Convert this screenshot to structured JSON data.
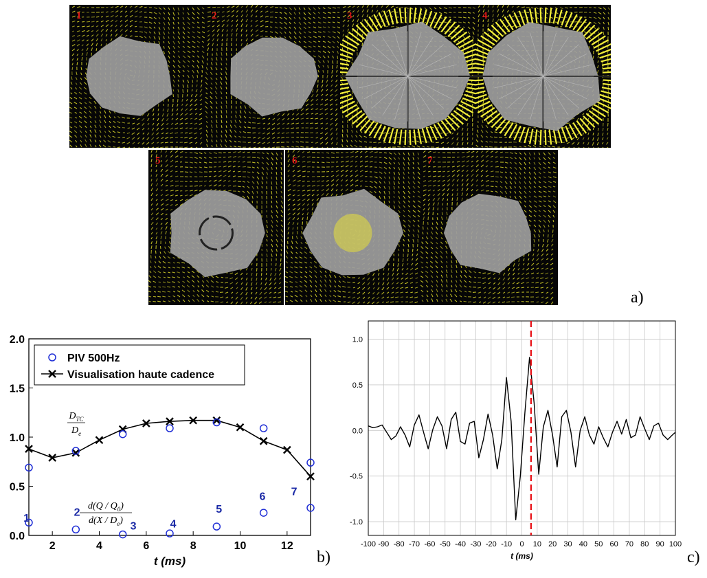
{
  "figure": {
    "panel_labels": [
      "a)",
      "b)",
      "c)"
    ]
  },
  "piv_frames": [
    {
      "label": "1",
      "blob": "small",
      "ring": false,
      "lobe": true
    },
    {
      "label": "2",
      "blob": "small",
      "ring": false,
      "lobe": false
    },
    {
      "label": "3",
      "blob": "large",
      "ring": true,
      "lobe": false
    },
    {
      "label": "4",
      "blob": "large",
      "ring": true,
      "lobe": false
    },
    {
      "label": "5",
      "blob": "medium",
      "ring": false,
      "lobe": false,
      "dark_circle": true
    },
    {
      "label": "6",
      "blob": "medium",
      "ring": false,
      "lobe": false,
      "yellow_core": true
    },
    {
      "label": "7",
      "blob": "small",
      "ring": false,
      "lobe": false
    }
  ],
  "colors": {
    "vector_yellow": "#d6d22a",
    "blob_gray": "#9d9d9d",
    "frame_number": "#e01818",
    "piv_marker": "#1f2ed6",
    "label_blue": "#1b2aa6",
    "dashed_red": "#e8141a"
  },
  "chart_data": [
    {
      "type": "scatter",
      "panel": "b)",
      "xlabel": "t (ms)",
      "ylabel": "",
      "xlim": [
        1,
        13
      ],
      "ylim": [
        0,
        2.0
      ],
      "xticks": [
        2,
        4,
        6,
        8,
        10,
        12
      ],
      "yticks": [
        0.0,
        0.5,
        1.0,
        1.5,
        2.0
      ],
      "ytick_labels": [
        "0.0",
        "0.5",
        "1.0",
        "1.5",
        "2.0"
      ],
      "legend_position": "top-left",
      "series": [
        {
          "name": "PIV 500Hz",
          "marker": "open-circle",
          "x": [
            1,
            3,
            5,
            7,
            9,
            11,
            13
          ],
          "y": [
            0.69,
            0.86,
            1.03,
            1.09,
            1.15,
            1.09,
            0.74
          ]
        },
        {
          "name": "PIV 500Hz",
          "marker": "open-circle",
          "x": [
            1,
            3,
            5,
            7,
            9,
            11,
            13
          ],
          "y": [
            0.13,
            0.06,
            0.01,
            0.02,
            0.09,
            0.23,
            0.28
          ]
        },
        {
          "name": "Visualisation haute cadence",
          "marker": "x-line",
          "x": [
            1,
            2,
            3,
            4,
            5,
            6,
            7,
            8,
            9,
            10,
            11,
            12,
            13
          ],
          "y": [
            0.88,
            0.79,
            0.84,
            0.97,
            1.08,
            1.14,
            1.16,
            1.17,
            1.17,
            1.1,
            0.96,
            0.87,
            0.6
          ]
        }
      ],
      "annotations": [
        {
          "text": "1",
          "x": 0.9,
          "y": 0.14
        },
        {
          "text": "2",
          "x": 3.05,
          "y": 0.2
        },
        {
          "text": "3",
          "x": 5.45,
          "y": 0.06
        },
        {
          "text": "4",
          "x": 7.15,
          "y": 0.08
        },
        {
          "text": "5",
          "x": 9.1,
          "y": 0.23
        },
        {
          "text": "6",
          "x": 10.95,
          "y": 0.36
        },
        {
          "text": "7",
          "x": 12.3,
          "y": 0.41
        }
      ],
      "formula_upper": {
        "num": "D",
        "num_sub": "TC",
        "den": "D",
        "den_sub": "e"
      },
      "formula_lower": {
        "num": "d(Q / Q",
        "num_sub": "0",
        "num_tail": ")",
        "den": "d(X / D",
        "den_sub": "e",
        "den_tail": ")"
      }
    },
    {
      "type": "line",
      "panel": "c)",
      "xlabel": "t (ms)",
      "ylabel": "",
      "xlim": [
        -100,
        100
      ],
      "ylim": [
        -1.15,
        1.2
      ],
      "grid": true,
      "xticks": [
        -100,
        -90,
        -80,
        -70,
        -60,
        -50,
        -40,
        -30,
        -20,
        -10,
        0,
        10,
        20,
        30,
        40,
        50,
        60,
        70,
        80,
        90,
        100
      ],
      "yticks": [
        -1.0,
        -0.5,
        0.0,
        0.5,
        1.0
      ],
      "ytick_labels": [
        "-1.0",
        "-0.5",
        "0.0",
        "0.5",
        "1.0"
      ],
      "vline": {
        "x": 6,
        "style": "dashed"
      },
      "series": [
        {
          "x": [
            -100,
            -97,
            -94,
            -91,
            -88,
            -85,
            -82,
            -79,
            -76,
            -73,
            -70,
            -67,
            -64,
            -61,
            -58,
            -55,
            -52,
            -49,
            -46,
            -43,
            -40,
            -37,
            -34,
            -31,
            -28,
            -25,
            -22,
            -19,
            -16,
            -13,
            -10,
            -7,
            -4,
            -1,
            2,
            5,
            8,
            11,
            14,
            17,
            20,
            23,
            26,
            29,
            32,
            35,
            38,
            41,
            44,
            47,
            50,
            53,
            56,
            59,
            62,
            65,
            68,
            71,
            74,
            77,
            80,
            83,
            86,
            89,
            92,
            95,
            98,
            100
          ],
          "y": [
            0.05,
            0.03,
            0.04,
            0.06,
            -0.02,
            -0.1,
            -0.06,
            0.04,
            -0.05,
            -0.18,
            0.06,
            0.17,
            -0.02,
            -0.2,
            0.01,
            0.15,
            0.05,
            -0.2,
            0.12,
            0.2,
            -0.12,
            -0.15,
            0.08,
            0.1,
            -0.3,
            -0.1,
            0.18,
            -0.05,
            -0.42,
            -0.1,
            0.58,
            0.1,
            -0.98,
            -0.5,
            0.2,
            0.8,
            0.3,
            -0.48,
            0.04,
            0.22,
            -0.05,
            -0.4,
            0.15,
            0.22,
            -0.02,
            -0.4,
            0.0,
            0.15,
            -0.05,
            -0.15,
            0.04,
            -0.08,
            -0.18,
            -0.02,
            0.1,
            -0.04,
            0.12,
            -0.08,
            -0.05,
            0.15,
            0.02,
            -0.1,
            0.05,
            0.08,
            -0.05,
            -0.1,
            -0.05,
            -0.02
          ]
        }
      ]
    }
  ]
}
